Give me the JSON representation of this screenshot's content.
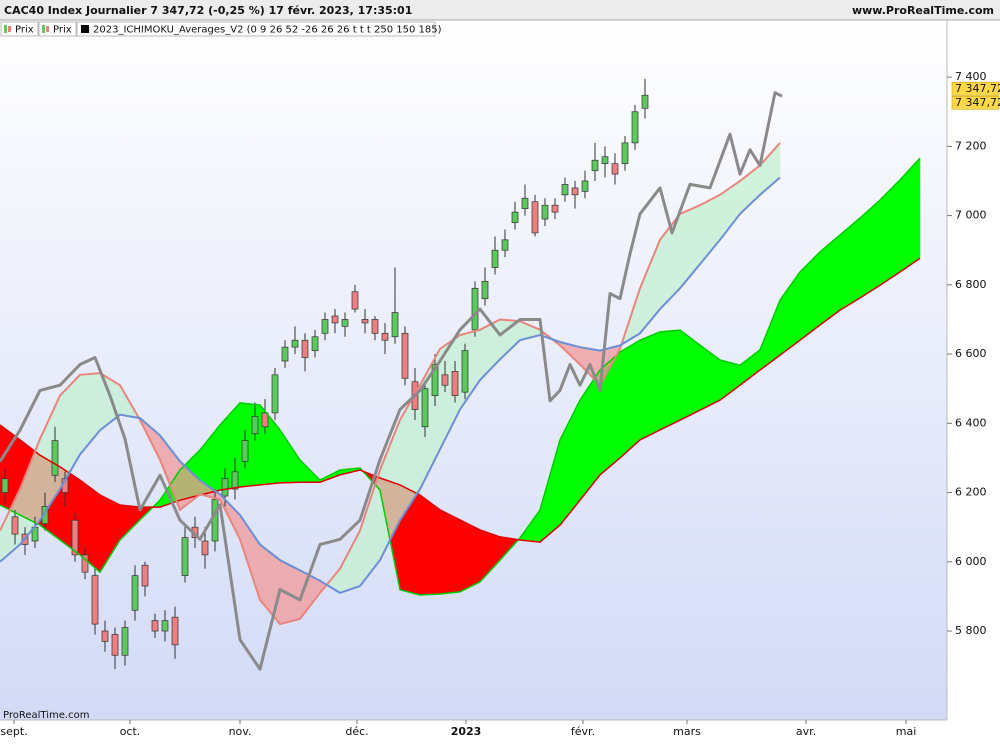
{
  "chart_data": {
    "type": "candlestick",
    "title": "CAC40 Index Journalier 7 347,72 (-0,25 %) 17 févr. 2023, 17:35:01",
    "source": "www.ProRealTime.com",
    "watermark": "ProRealTime.com",
    "legend": [
      "Prix",
      "Prix",
      "2023_ICHIMOKU_Averages_V2 (0 9 26 52 -26 26 26 t t t 250 150 185)"
    ],
    "price_labels": [
      {
        "value": 7347.72,
        "label": "7 347,72"
      },
      {
        "value": 7347.72,
        "label": "7 347,72"
      }
    ],
    "xlim": [
      0,
      189.4
    ],
    "xticks": [
      {
        "value": 2.8,
        "label": "sept."
      },
      {
        "value": 26,
        "label": "oct."
      },
      {
        "value": 48,
        "label": "nov."
      },
      {
        "value": 71.4,
        "label": "déc."
      },
      {
        "value": 93.2,
        "label": "2023"
      },
      {
        "value": 116.6,
        "label": "févr."
      },
      {
        "value": 137.4,
        "label": "mars"
      },
      {
        "value": 161.2,
        "label": "avr."
      },
      {
        "value": 181.2,
        "label": "mai"
      }
    ],
    "ylim": [
      5543,
      7565
    ],
    "yticks": [
      {
        "value": 5800,
        "label": "5 800"
      },
      {
        "value": 6000,
        "label": "6 000"
      },
      {
        "value": 6200,
        "label": "6 200"
      },
      {
        "value": 6400,
        "label": "6 400"
      },
      {
        "value": 6600,
        "label": "6 600"
      },
      {
        "value": 6800,
        "label": "6 800"
      },
      {
        "value": 7000,
        "label": "7 000"
      },
      {
        "value": 7200,
        "label": "7 200"
      },
      {
        "value": 7400,
        "label": "7 400"
      }
    ],
    "candles": {
      "up_color": "#5cc95c",
      "down_color": "#ec7f7f",
      "x": [
        1,
        3,
        5,
        7,
        9,
        11,
        13,
        15,
        17,
        19,
        21,
        23,
        25,
        27,
        29,
        31,
        33,
        35,
        37,
        39,
        41,
        43,
        45,
        47,
        49,
        51,
        53,
        55,
        57,
        59,
        61,
        63,
        65,
        67,
        69,
        71,
        73,
        75,
        77,
        79,
        81,
        83,
        85,
        87,
        89,
        91,
        93,
        95,
        97,
        99,
        101,
        103,
        105,
        107,
        109,
        111,
        113,
        115,
        117,
        119,
        121,
        123,
        125,
        127,
        129
      ],
      "open": [
        6200,
        6130,
        6080,
        6060,
        6110,
        6250,
        6240,
        6120,
        6020,
        5960,
        5800,
        5790,
        5730,
        5860,
        5990,
        5830,
        5800,
        5840,
        5960,
        6100,
        6060,
        6060,
        6190,
        6210,
        6290,
        6370,
        6430,
        6430,
        6580,
        6620,
        6640,
        6610,
        6660,
        6710,
        6680,
        6780,
        6700,
        6700,
        6660,
        6650,
        6660,
        6520,
        6390,
        6480,
        6540,
        6550,
        6490,
        6670,
        6760,
        6850,
        6900,
        6980,
        7020,
        7040,
        6990,
        7030,
        7060,
        7080,
        7070,
        7130,
        7150,
        7150,
        7150,
        7210,
        7310
      ],
      "high": [
        6270,
        6150,
        6100,
        6130,
        6200,
        6390,
        6260,
        6140,
        6040,
        5980,
        5830,
        5810,
        5830,
        5990,
        6000,
        5850,
        5860,
        5870,
        6100,
        6130,
        6100,
        6210,
        6270,
        6300,
        6380,
        6460,
        6470,
        6560,
        6640,
        6680,
        6660,
        6670,
        6720,
        6730,
        6720,
        6800,
        6730,
        6710,
        6690,
        6850,
        6680,
        6560,
        6520,
        6600,
        6580,
        6580,
        6630,
        6810,
        6850,
        6940,
        6960,
        7040,
        7090,
        7060,
        7050,
        7050,
        7110,
        7100,
        7130,
        7210,
        7200,
        7180,
        7230,
        7320,
        7395
      ],
      "low": [
        6170,
        6050,
        6020,
        6040,
        6090,
        6230,
        6160,
        6000,
        5950,
        5790,
        5740,
        5690,
        5700,
        5830,
        5900,
        5780,
        5770,
        5720,
        5940,
        6040,
        5980,
        6030,
        6160,
        6180,
        6270,
        6350,
        6370,
        6410,
        6560,
        6600,
        6550,
        6590,
        6640,
        6660,
        6650,
        6720,
        6660,
        6640,
        6600,
        6630,
        6510,
        6410,
        6360,
        6450,
        6490,
        6460,
        6470,
        6650,
        6740,
        6830,
        6880,
        6960,
        7000,
        6940,
        6970,
        6990,
        7040,
        7020,
        7050,
        7100,
        7110,
        7090,
        7130,
        7190,
        7280
      ],
      "close": [
        6240,
        6080,
        6050,
        6100,
        6160,
        6350,
        6200,
        6020,
        5970,
        5820,
        5770,
        5730,
        5810,
        5960,
        5930,
        5800,
        5830,
        5760,
        6070,
        6070,
        6020,
        6180,
        6240,
        6260,
        6350,
        6420,
        6390,
        6540,
        6620,
        6640,
        6590,
        6650,
        6700,
        6690,
        6700,
        6730,
        6690,
        6660,
        6640,
        6720,
        6530,
        6440,
        6500,
        6570,
        6510,
        6480,
        6610,
        6790,
        6810,
        6900,
        6930,
        7010,
        7050,
        6950,
        7030,
        7010,
        7090,
        7060,
        7100,
        7160,
        7170,
        7120,
        7210,
        7300,
        7347.72
      ]
    },
    "clouds": [
      {
        "x": [
          0,
          4,
          8,
          12,
          16,
          20,
          24,
          28,
          32,
          36,
          40,
          44,
          48,
          52,
          56,
          60,
          64,
          68,
          72,
          76,
          80,
          84,
          88,
          92,
          96,
          100,
          104,
          108,
          112,
          116,
          120,
          124,
          128,
          132,
          136,
          140,
          144,
          148,
          152,
          156,
          160,
          164,
          168,
          172,
          176,
          180,
          184
        ],
        "a": {
          "color": "#00cc00",
          "values": [
            6164,
            6135,
            6106,
            6063,
            6020,
            5970,
            6063,
            6121,
            6178,
            6265,
            6323,
            6395,
            6459,
            6453,
            6381,
            6294,
            6236,
            6265,
            6271,
            6207,
            5919,
            5904,
            5907,
            5913,
            5942,
            6005,
            6069,
            6150,
            6352,
            6467,
            6554,
            6606,
            6640,
            6664,
            6669,
            6626,
            6583,
            6568,
            6612,
            6756,
            6837,
            6895,
            6944,
            6993,
            7045,
            7103,
            7166
          ]
        },
        "b": {
          "color": "#e00000",
          "values": [
            6395,
            6352,
            6308,
            6274,
            6236,
            6193,
            6164,
            6158,
            6158,
            6178,
            6193,
            6207,
            6216,
            6222,
            6228,
            6230,
            6230,
            6251,
            6265,
            6242,
            6222,
            6193,
            6150,
            6121,
            6092,
            6072,
            6063,
            6057,
            6106,
            6178,
            6251,
            6300,
            6352,
            6381,
            6409,
            6438,
            6467,
            6510,
            6554,
            6597,
            6640,
            6684,
            6727,
            6762,
            6799,
            6837,
            6877
          ]
        },
        "bull_color": "#00ff00",
        "bear_color": "#ff0000",
        "opacity": 1
      },
      {
        "x": [
          0,
          4,
          8,
          12,
          16,
          20,
          24,
          28,
          32,
          36,
          40,
          44,
          48,
          52,
          56,
          60,
          64,
          68,
          72,
          76,
          80,
          84,
          88,
          92,
          96,
          100,
          104,
          108,
          112,
          116,
          120,
          124,
          128,
          132,
          136,
          140,
          144,
          148,
          152,
          156
        ],
        "a": {
          "color": "#e8857c",
          "values": [
            6090,
            6210,
            6355,
            6480,
            6540,
            6545,
            6510,
            6410,
            6295,
            6150,
            6195,
            6180,
            6065,
            5890,
            5820,
            5835,
            5910,
            5980,
            6090,
            6265,
            6410,
            6510,
            6615,
            6655,
            6670,
            6700,
            6695,
            6670,
            6625,
            6570,
            6510,
            6615,
            6790,
            6930,
            7005,
            7030,
            7060,
            7100,
            7145,
            7210
          ]
        },
        "b": {
          "color": "#6b8ed6",
          "values": [
            6000,
            6050,
            6120,
            6210,
            6310,
            6380,
            6425,
            6415,
            6365,
            6290,
            6235,
            6195,
            6135,
            6050,
            6005,
            5975,
            5945,
            5910,
            5930,
            6005,
            6120,
            6210,
            6325,
            6440,
            6525,
            6585,
            6640,
            6655,
            6635,
            6620,
            6610,
            6625,
            6660,
            6730,
            6790,
            6860,
            6930,
            7005,
            7060,
            7110
          ]
        },
        "bull_color": "#c4f0d2",
        "bear_color": "#f29a9a",
        "opacity": 0.75
      }
    ],
    "series": [
      {
        "color": "#8a8a8a",
        "x": [
          0,
          4,
          8,
          12,
          16,
          19,
          22,
          25,
          28,
          32,
          36,
          40,
          44,
          48,
          52,
          56,
          60,
          64,
          68,
          72,
          76,
          80,
          84,
          88,
          92,
          96,
          100,
          104,
          108,
          110,
          112,
          114,
          116,
          118,
          120,
          122,
          124,
          126,
          128,
          132,
          134.4,
          138,
          142,
          146,
          148,
          150,
          152,
          155,
          156.4
        ],
        "values": [
          6290,
          6380,
          6495,
          6510,
          6570,
          6590,
          6480,
          6355,
          6150,
          6250,
          6120,
          6065,
          6165,
          5775,
          5690,
          5920,
          5890,
          6050,
          6065,
          6120,
          6295,
          6440,
          6495,
          6580,
          6670,
          6730,
          6655,
          6700,
          6700,
          6465,
          6495,
          6570,
          6510,
          6570,
          6495,
          6775,
          6760,
          6890,
          7005,
          7080,
          6950,
          7090,
          7080,
          7235,
          7120,
          7190,
          7145,
          7355,
          7345
        ]
      }
    ]
  }
}
